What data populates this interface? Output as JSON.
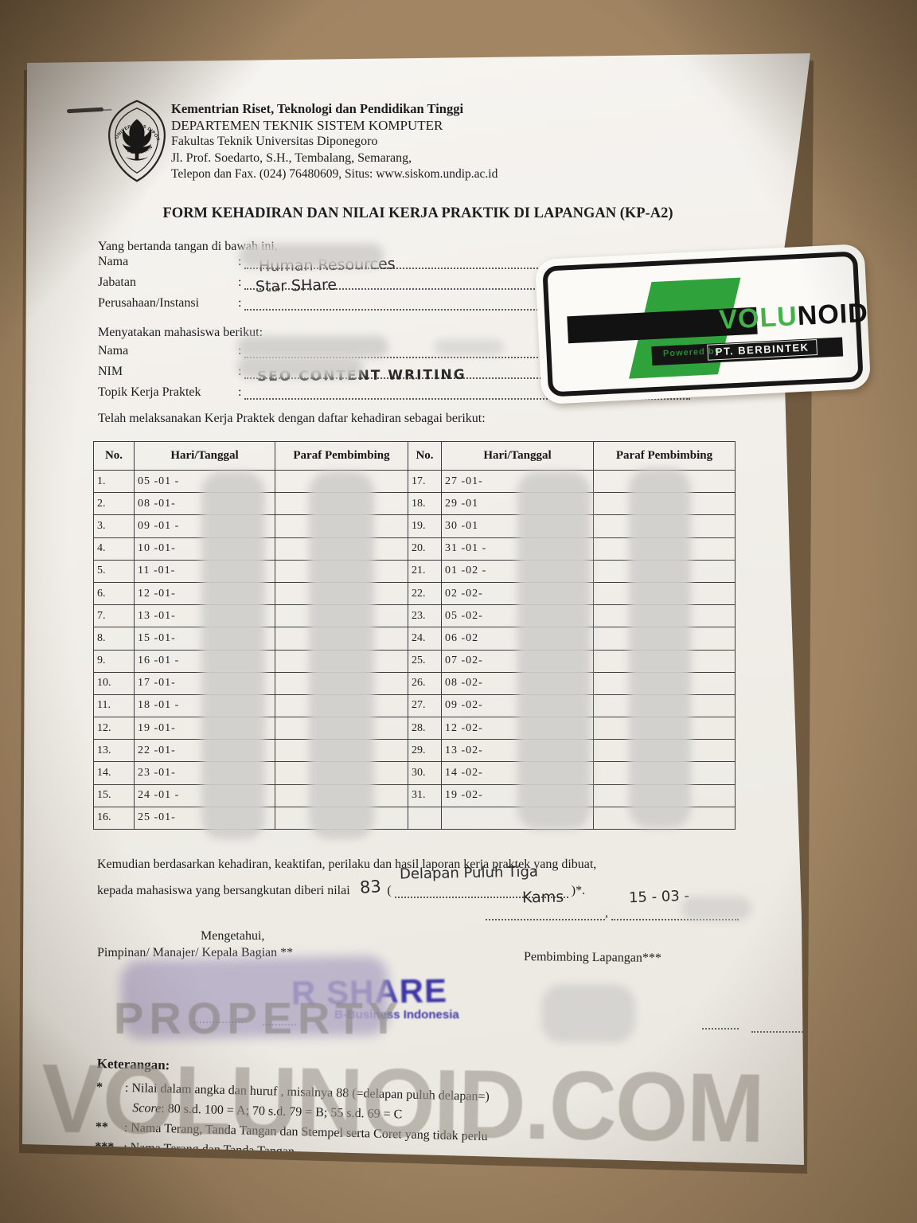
{
  "letterhead": {
    "ministry": "Kementrian Riset, Teknologi dan Pendidikan Tinggi",
    "department": "DEPARTEMEN TEKNIK SISTEM KOMPUTER",
    "faculty": "Fakultas Teknik Universitas Diponegoro",
    "address": "Jl. Prof. Soedarto, S.H., Tembalang, Semarang,",
    "contact": "Telepon dan Fax. (024) 76480609, Situs: www.siskom.undip.ac.id",
    "logo": {
      "arc_top": "UNIVERSITAS DIPONEGORO",
      "arc_bottom": "SEMARANG"
    }
  },
  "form": {
    "title": "FORM KEHADIRAN DAN NILAI KERJA PRAKTIK DI LAPANGAN (KP-A2)",
    "opening": "Yang bertanda tangan di bawah ini,",
    "signer": {
      "nama_label": "Nama",
      "nama_value": "",
      "jabatan_label": "Jabatan",
      "jabatan_value": "Human Resources",
      "perusahaan_label": "Perusahaan/Instansi",
      "perusahaan_value": "Star SHare"
    },
    "student_intro": "Menyatakan mahasiswa berikut:",
    "student": {
      "nama_label": "Nama",
      "nama_value": "",
      "nim_label": "NIM",
      "nim_value": "",
      "topik_label": "Topik Kerja Praktek",
      "topik_value": "SEO CONTENT WRITING"
    },
    "attendance_intro": "Telah melaksanakan Kerja Praktek dengan daftar kehadiran sebagai berikut:"
  },
  "table": {
    "headers": [
      "No.",
      "Hari/Tanggal",
      "Paraf Pembimbing",
      "No.",
      "Hari/Tanggal",
      "Paraf Pembimbing"
    ],
    "rows": [
      {
        "no_left": "1.",
        "date_left": "05 -01 -",
        "no_right": "17.",
        "date_right": "27 -01-"
      },
      {
        "no_left": "2.",
        "date_left": "08 -01-",
        "no_right": "18.",
        "date_right": "29 -01"
      },
      {
        "no_left": "3.",
        "date_left": "09 -01 -",
        "no_right": "19.",
        "date_right": "30 -01"
      },
      {
        "no_left": "4.",
        "date_left": "10 -01-",
        "no_right": "20.",
        "date_right": "31 -01 -"
      },
      {
        "no_left": "5.",
        "date_left": "11 -01-",
        "no_right": "21.",
        "date_right": "01 -02 -"
      },
      {
        "no_left": "6.",
        "date_left": "12 -01-",
        "no_right": "22.",
        "date_right": "02 -02-"
      },
      {
        "no_left": "7.",
        "date_left": "13 -01-",
        "no_right": "23.",
        "date_right": "05 -02-"
      },
      {
        "no_left": "8.",
        "date_left": "15 -01-",
        "no_right": "24.",
        "date_right": "06 -02"
      },
      {
        "no_left": "9.",
        "date_left": "16 -01 -",
        "no_right": "25.",
        "date_right": "07 -02-"
      },
      {
        "no_left": "10.",
        "date_left": "17 -01-",
        "no_right": "26.",
        "date_right": "08 -02-"
      },
      {
        "no_left": "11.",
        "date_left": "18 -01 -",
        "no_right": "27.",
        "date_right": "09 -02-"
      },
      {
        "no_left": "12.",
        "date_left": "19 -01-",
        "no_right": "28.",
        "date_right": "12 -02-"
      },
      {
        "no_left": "13.",
        "date_left": "22 -01-",
        "no_right": "29.",
        "date_right": "13 -02-"
      },
      {
        "no_left": "14.",
        "date_left": "23 -01-",
        "no_right": "30.",
        "date_right": "14 -02-"
      },
      {
        "no_left": "15.",
        "date_left": "24 -01 -",
        "no_right": "31.",
        "date_right": "19 -02-"
      },
      {
        "no_left": "16.",
        "date_left": "25 -01-",
        "no_right": "",
        "date_right": ""
      }
    ]
  },
  "closing": {
    "line1": "Kemudian berdasarkan kehadiran, keaktifan, perilaku dan hasil laporan kerja praktek yang dibuat,",
    "line2_prefix": "kepada mahasiswa yang bersangkutan diberi nilai",
    "score_number": "83",
    "paren_open": "(",
    "score_words": "Delapan Puluh Tiga",
    "line2_suffix": ")*.",
    "place": "Kams",
    "comma": ",",
    "date": "15 - 03 -"
  },
  "signatures": {
    "left_line1": "Mengetahui,",
    "left_line2": "Pimpinan/ Manajer/ Kepala Bagian **",
    "right_label": "Pembimbing Lapangan***",
    "stamp_line1": "R SHARE",
    "stamp_line2": "B-Business Indonesia"
  },
  "notes": {
    "heading": "Keterangan:",
    "star1_marker": "*",
    "star1_text": ": Nilai dalam angka dan huruf , misalnya  88  (=delapan puluh delapan=)",
    "score_italic": "Score",
    "score_rest": ":  80 s.d. 100 = A;    70 s.d. 79 = B;    55  s.d. 69  =  C",
    "star2_marker": "**",
    "star2_text": ": Nama Terang, Tanda Tangan dan Stempel serta Coret yang tidak perlu",
    "star3_marker": "***",
    "star3_text": ": Nama Terang dan Tanda Tangan"
  },
  "sticker": {
    "brand_green": "VOLU",
    "brand_black": "NOID",
    "powered_by": "Powered by",
    "company": "PT. BERBINTEK",
    "accent_color": "#2fa23b"
  },
  "watermarks": {
    "property": "PROPERTY",
    "main": "VOLUNOID.COM"
  }
}
